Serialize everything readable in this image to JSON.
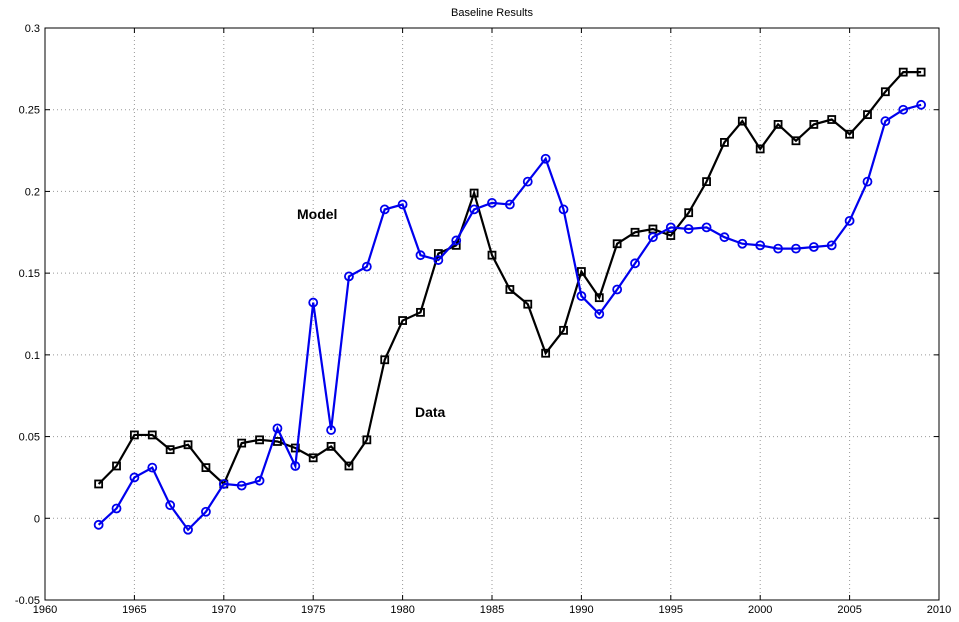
{
  "chart_data": {
    "type": "line",
    "title": "Baseline Results",
    "x": [
      1963,
      1964,
      1965,
      1966,
      1967,
      1968,
      1969,
      1970,
      1971,
      1972,
      1973,
      1974,
      1975,
      1976,
      1977,
      1978,
      1979,
      1980,
      1981,
      1982,
      1983,
      1984,
      1985,
      1986,
      1987,
      1988,
      1989,
      1990,
      1991,
      1992,
      1993,
      1994,
      1995,
      1996,
      1997,
      1998,
      1999,
      2000,
      2001,
      2002,
      2003,
      2004,
      2005,
      2006,
      2007,
      2008,
      2009
    ],
    "series": [
      {
        "color": "#000000",
        "marker": "square",
        "values": [
          0.021,
          0.032,
          0.051,
          0.051,
          0.042,
          0.045,
          0.031,
          0.021,
          0.046,
          0.048,
          0.047,
          0.043,
          0.037,
          0.044,
          0.032,
          0.048,
          0.097,
          0.121,
          0.126,
          0.162,
          0.167,
          0.199,
          0.161,
          0.14,
          0.131,
          0.101,
          0.115,
          0.151,
          0.135,
          0.168,
          0.175,
          0.177,
          0.173,
          0.187,
          0.206,
          0.23,
          0.243,
          0.226,
          0.241,
          0.231,
          0.241,
          0.244,
          0.235,
          0.247,
          0.261,
          0.273,
          0.273
        ]
      },
      {
        "color": "#0000ee",
        "marker": "circle",
        "values": [
          -0.004,
          0.006,
          0.025,
          0.031,
          0.008,
          -0.007,
          0.004,
          0.021,
          0.02,
          0.023,
          0.055,
          0.032,
          0.132,
          0.054,
          0.148,
          0.154,
          0.189,
          0.192,
          0.161,
          0.158,
          0.17,
          0.189,
          0.193,
          0.192,
          0.206,
          0.22,
          0.189,
          0.136,
          0.125,
          0.14,
          0.156,
          0.172,
          0.178,
          0.177,
          0.178,
          0.172,
          0.168,
          0.167,
          0.165,
          0.165,
          0.166,
          0.167,
          0.182,
          0.206,
          0.243,
          0.25,
          0.253
        ]
      }
    ],
    "annotations": [
      "Model",
      "Data"
    ],
    "xlim": [
      1960,
      2010
    ],
    "xticks": [
      1960,
      1965,
      1970,
      1975,
      1980,
      1985,
      1990,
      1995,
      2000,
      2005,
      2010
    ],
    "ylim": [
      -0.05,
      0.3
    ],
    "yticks": [
      -0.05,
      0,
      0.05,
      0.1,
      0.15,
      0.2,
      0.25,
      0.3
    ],
    "grid": true
  }
}
